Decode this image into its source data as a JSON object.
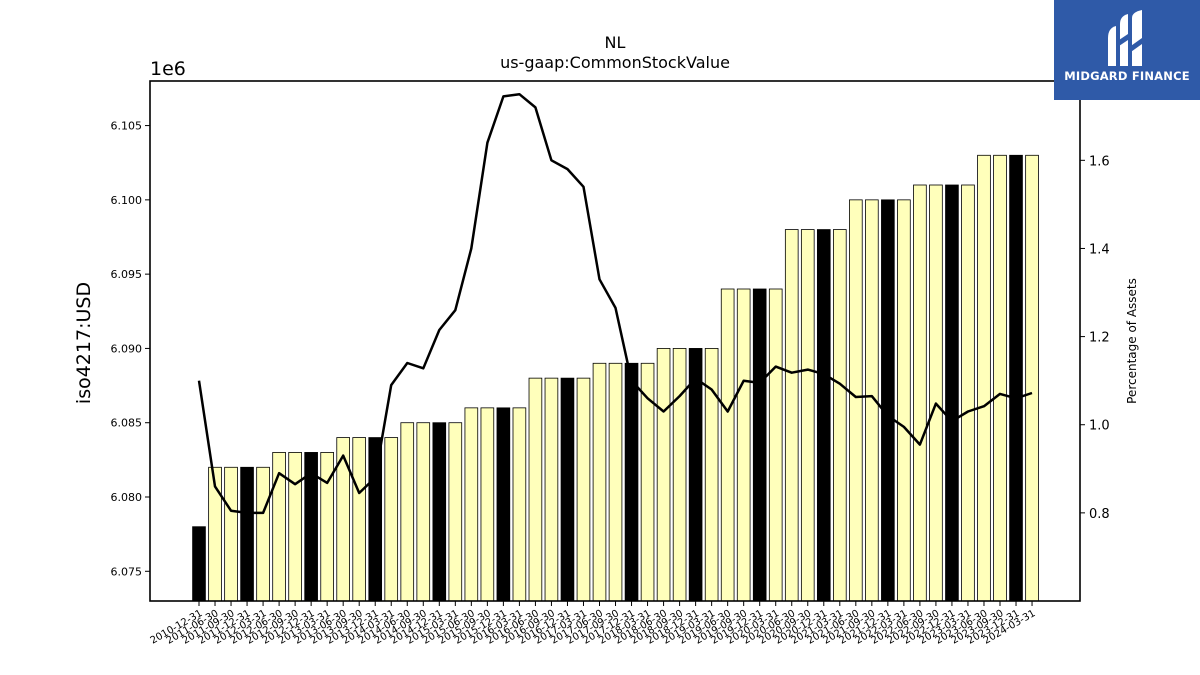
{
  "chart_data": {
    "type": "bar",
    "title": "NL",
    "subtitle": "us-gaap:CommonStockValue",
    "ylabel": "iso4217:USD",
    "y2label": "Percentage of Assets",
    "offset_label": "1e6",
    "ylim": [
      6073000,
      6108000
    ],
    "y2lim": [
      0.6,
      1.78
    ],
    "yticks": [
      "6.075",
      "6.080",
      "6.085",
      "6.090",
      "6.095",
      "6.100",
      "6.105"
    ],
    "y2ticks": [
      "0.8",
      "1.0",
      "1.2",
      "1.4",
      "1.6"
    ],
    "categories": [
      "2010-12-31",
      "2011-06-30",
      "2011-09-30",
      "2011-12-31",
      "2012-03-31",
      "2012-06-30",
      "2012-09-30",
      "2012-12-31",
      "2013-03-31",
      "2013-06-30",
      "2013-09-30",
      "2013-12-31",
      "2014-03-31",
      "2014-06-30",
      "2014-09-30",
      "2014-12-31",
      "2015-03-31",
      "2015-06-30",
      "2015-09-30",
      "2015-12-31",
      "2016-03-31",
      "2016-06-30",
      "2016-09-30",
      "2016-12-31",
      "2017-03-31",
      "2017-06-30",
      "2017-09-30",
      "2017-12-31",
      "2018-03-31",
      "2018-06-30",
      "2018-09-30",
      "2018-12-31",
      "2019-03-31",
      "2019-06-30",
      "2019-09-30",
      "2019-12-31",
      "2020-03-31",
      "2020-06-30",
      "2020-09-30",
      "2020-12-31",
      "2021-03-31",
      "2021-06-30",
      "2021-09-30",
      "2021-12-31",
      "2022-03-31",
      "2022-06-30",
      "2022-09-30",
      "2022-12-31",
      "2023-03-31",
      "2023-06-30",
      "2023-09-30",
      "2023-12-31",
      "2024-03-31"
    ],
    "series": [
      {
        "type": "bar",
        "values": [
          6078000,
          6082000,
          6082000,
          6082000,
          6082000,
          6083000,
          6083000,
          6083000,
          6083000,
          6084000,
          6084000,
          6084000,
          6084000,
          6085000,
          6085000,
          6085000,
          6085000,
          6086000,
          6086000,
          6086000,
          6086000,
          6088000,
          6088000,
          6088000,
          6088000,
          6089000,
          6089000,
          6089000,
          6089000,
          6090000,
          6090000,
          6090000,
          6090000,
          6094000,
          6094000,
          6094000,
          6094000,
          6098000,
          6098000,
          6098000,
          6098000,
          6100000,
          6100000,
          6100000,
          6100000,
          6101000,
          6101000,
          6101000,
          6101000,
          6103000,
          6103000,
          6103000,
          6103000
        ],
        "highlight": [
          true,
          false,
          false,
          true,
          false,
          false,
          false,
          true,
          false,
          false,
          false,
          true,
          false,
          false,
          false,
          true,
          false,
          false,
          false,
          true,
          false,
          false,
          false,
          true,
          false,
          false,
          false,
          true,
          false,
          false,
          false,
          true,
          false,
          false,
          false,
          true,
          false,
          false,
          false,
          true,
          false,
          false,
          false,
          true,
          false,
          false,
          false,
          true,
          false,
          false,
          false,
          true,
          false
        ]
      },
      {
        "type": "line",
        "axis": "right",
        "values": [
          1.1,
          0.86,
          0.805,
          0.8,
          0.8,
          0.89,
          0.865,
          0.89,
          0.868,
          0.93,
          0.845,
          0.88,
          1.09,
          1.14,
          1.128,
          1.215,
          1.26,
          1.4,
          1.64,
          1.745,
          1.75,
          1.72,
          1.6,
          1.58,
          1.54,
          1.33,
          1.265,
          1.1,
          1.06,
          1.03,
          1.065,
          1.105,
          1.08,
          1.03,
          1.1,
          1.095,
          1.132,
          1.118,
          1.125,
          1.115,
          1.093,
          1.063,
          1.065,
          1.02,
          0.995,
          0.955,
          1.048,
          1.008,
          1.03,
          1.042,
          1.07,
          1.06,
          1.072
        ]
      }
    ],
    "colors": {
      "bar_fill": "#ffffbb",
      "bar_highlight": "#000000",
      "bar_edge": "#000000",
      "line": "#000000"
    }
  },
  "logo": {
    "text": "MIDGARD FINANCE",
    "bg": "#2f5aa8"
  }
}
